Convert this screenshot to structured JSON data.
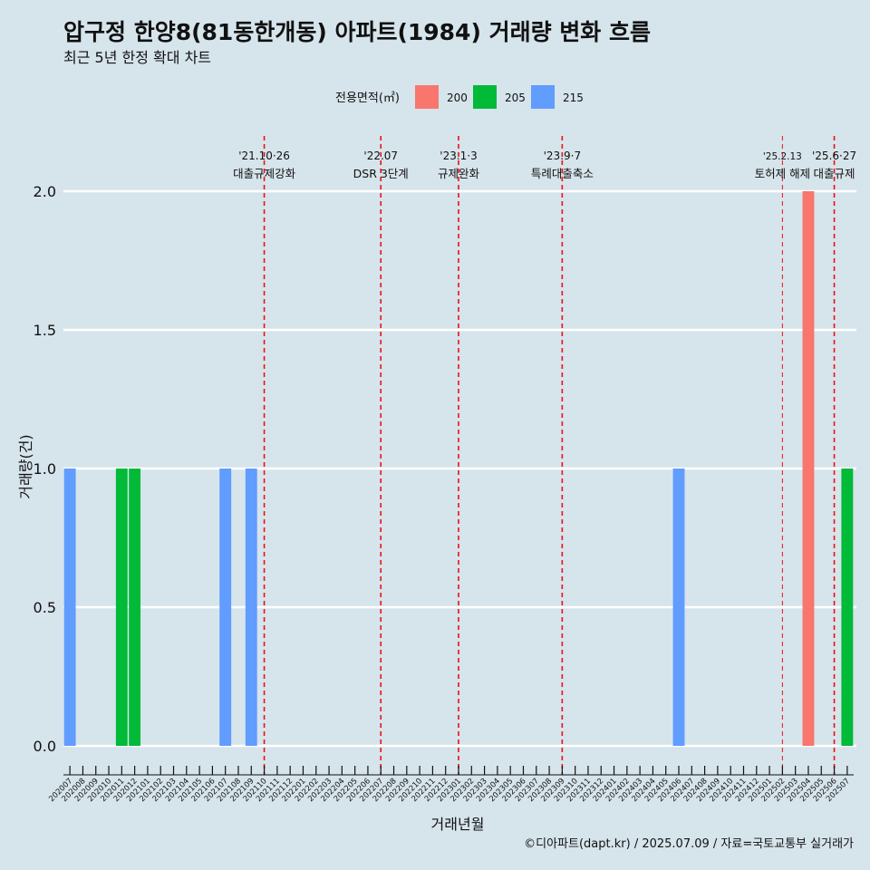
{
  "title": "압구정 한양8(81동한개동) 아파트(1984) 거래량 변화 흐름",
  "subtitle": "최근 5년 한정 확대 차트",
  "caption": "©디아파트(dapt.kr) / 2025.07.09 / 자료=국토교통부 실거래가",
  "legend": {
    "title": "전용면적(㎡)",
    "items": [
      {
        "label": "200",
        "color": "#f8766d"
      },
      {
        "label": "205",
        "color": "#00ba38"
      },
      {
        "label": "215",
        "color": "#619cff"
      }
    ]
  },
  "chart_data": {
    "type": "bar",
    "xlabel": "거래년월",
    "ylabel": "거래량(건)",
    "ylim": [
      0,
      2
    ],
    "yticks": [
      "0.0",
      "0.5",
      "1.0",
      "1.5",
      "2.0"
    ],
    "categories": [
      "202007",
      "202008",
      "202009",
      "202010",
      "202011",
      "202012",
      "202101",
      "202102",
      "202103",
      "202104",
      "202105",
      "202106",
      "202107",
      "202108",
      "202109",
      "202110",
      "202111",
      "202112",
      "202201",
      "202202",
      "202203",
      "202204",
      "202205",
      "202206",
      "202207",
      "202208",
      "202209",
      "202210",
      "202211",
      "202212",
      "202301",
      "202302",
      "202303",
      "202304",
      "202305",
      "202306",
      "202307",
      "202308",
      "202309",
      "202310",
      "202311",
      "202312",
      "202401",
      "202402",
      "202403",
      "202404",
      "202405",
      "202406",
      "202407",
      "202408",
      "202409",
      "202410",
      "202411",
      "202412",
      "202501",
      "202502",
      "202503",
      "202504",
      "202505",
      "202506",
      "202507"
    ],
    "bars": [
      {
        "x": "202007",
        "series": "215",
        "value": 1
      },
      {
        "x": "202011",
        "series": "205",
        "value": 1
      },
      {
        "x": "202012",
        "series": "205",
        "value": 1
      },
      {
        "x": "202107",
        "series": "215",
        "value": 1
      },
      {
        "x": "202109",
        "series": "215",
        "value": 1
      },
      {
        "x": "202406",
        "series": "215",
        "value": 1
      },
      {
        "x": "202504",
        "series": "200",
        "value": 2
      },
      {
        "x": "202507",
        "series": "205",
        "value": 1
      }
    ],
    "events": [
      {
        "x": "202110",
        "date": "'21.10·26",
        "label": "대출규제강화",
        "small": false
      },
      {
        "x": "202207",
        "date": "'22.07",
        "label": "DSR 3단계",
        "small": false
      },
      {
        "x": "202301",
        "date": "'23.1·3",
        "label": "규제완화",
        "small": false
      },
      {
        "x": "202309",
        "date": "'23.9·7",
        "label": "특례대출축소",
        "small": false
      },
      {
        "x": "202502",
        "date": "'25.2.13",
        "label": "토허제 해제",
        "small": true
      },
      {
        "x": "202506",
        "date": "'25.6·27",
        "label": "대출규제",
        "small": false
      }
    ],
    "grid": true,
    "legend_position": "top"
  }
}
